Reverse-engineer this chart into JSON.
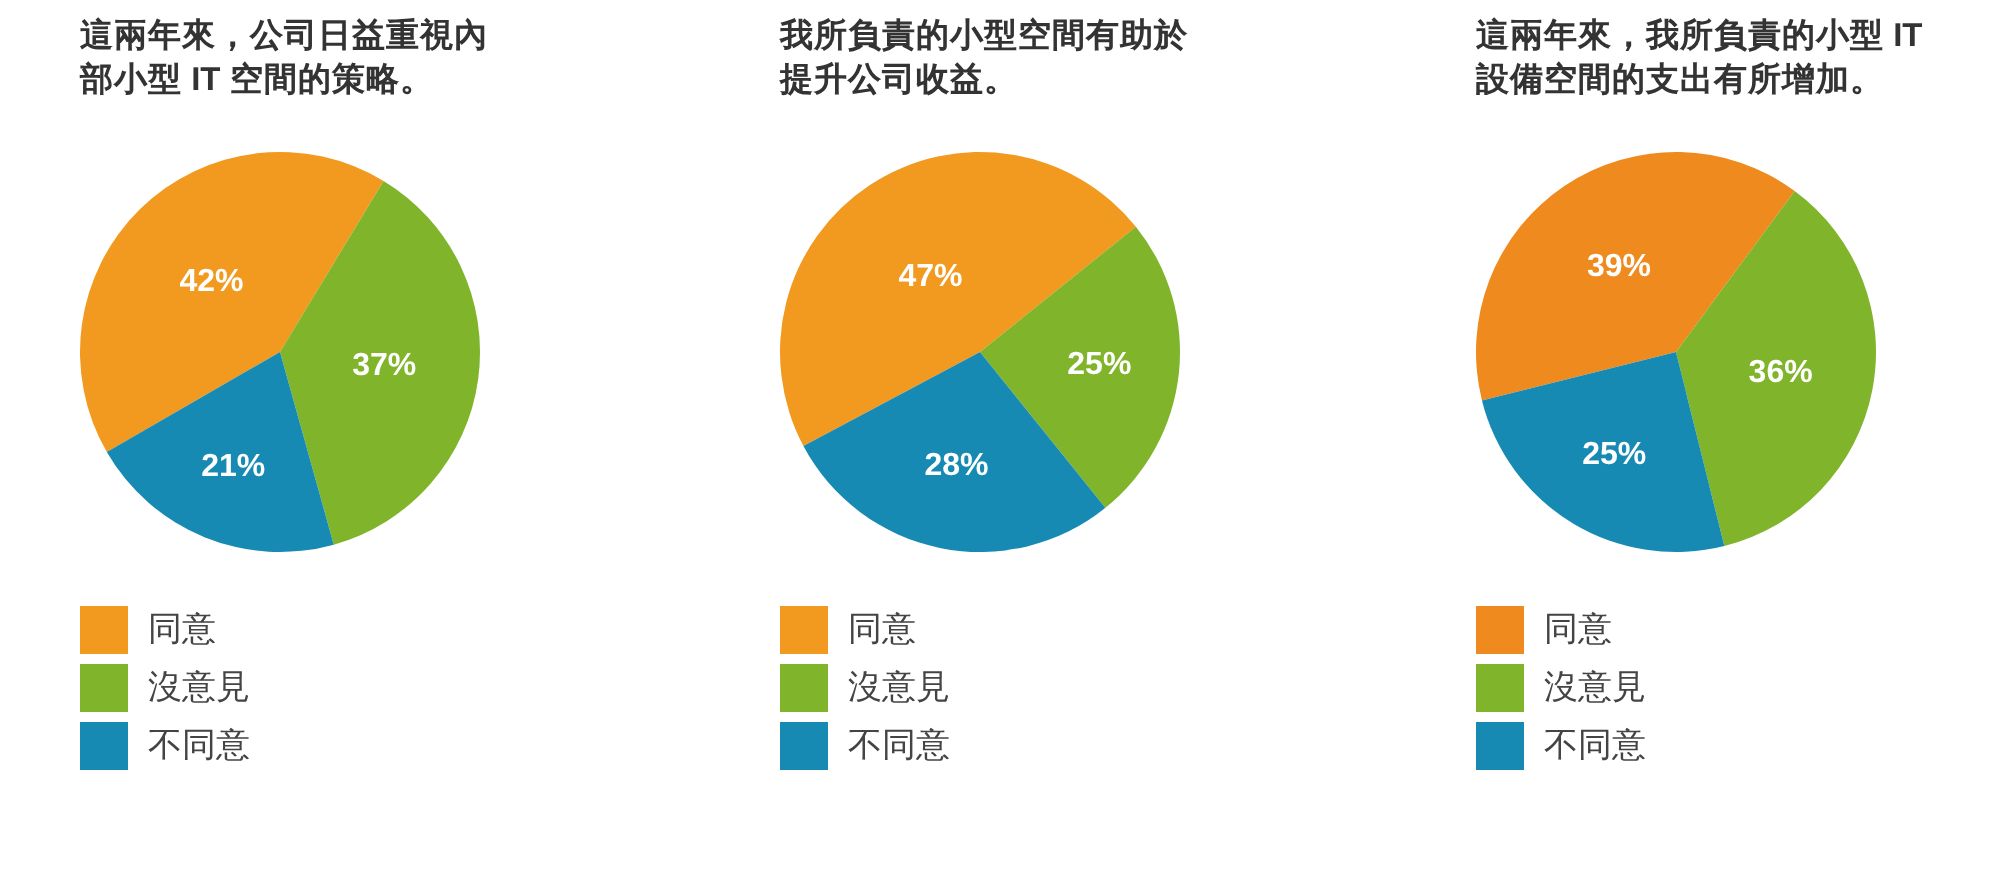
{
  "chart_data": [
    {
      "type": "pie",
      "title": "這兩年來，公司日益重視內部小型 IT 空間的策略。",
      "categories": [
        "同意",
        "沒意見",
        "不同意"
      ],
      "values": [
        42,
        37,
        21
      ],
      "colors": [
        "#f29a1f",
        "#80b42a",
        "#168ab2"
      ],
      "value_labels": [
        "42%",
        "37%",
        "21%"
      ],
      "legend": "bottom"
    },
    {
      "type": "pie",
      "title": "我所負責的小型空間有助於提升公司收益。",
      "categories": [
        "同意",
        "沒意見",
        "不同意"
      ],
      "values": [
        47,
        25,
        28
      ],
      "colors": [
        "#f29a1f",
        "#80b42a",
        "#168ab2"
      ],
      "value_labels": [
        "47%",
        "25%",
        "28%"
      ],
      "legend": "bottom"
    },
    {
      "type": "pie",
      "title": "這兩年來，我所負責的小型 IT設備空間的支出有所增加。",
      "categories": [
        "同意",
        "沒意見",
        "不同意"
      ],
      "values": [
        39,
        36,
        25
      ],
      "colors": [
        "#ef8a1e",
        "#80b42a",
        "#168ab2"
      ],
      "value_labels": [
        "39%",
        "36%",
        "25%"
      ],
      "legend": "bottom"
    }
  ]
}
